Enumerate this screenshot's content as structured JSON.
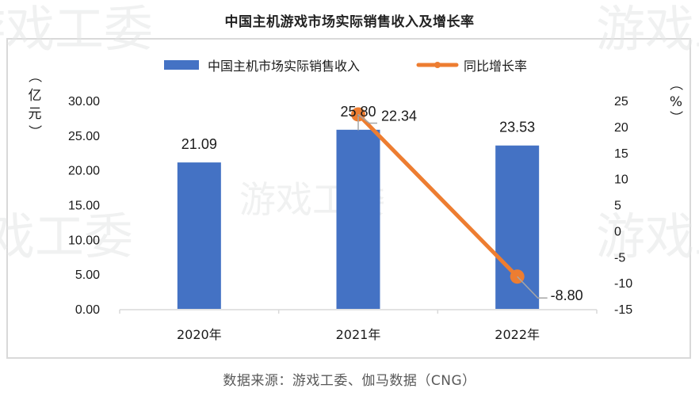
{
  "header": {
    "title": "中国主机游戏市场实际销售收入及增长率"
  },
  "footer": {
    "source": "数据来源：游戏工委、伽马数据（CNG）"
  },
  "watermark": {
    "text": "游戏工委"
  },
  "colors": {
    "bar": "#4472C4",
    "line": "#ED7D31",
    "axis": "#d9d9d9",
    "leader": "#a6a6a6",
    "watermark": "#e4e6e7"
  },
  "chart_data": {
    "type": "bar+line",
    "title": "中国主机游戏市场实际销售收入及增长率",
    "categories": [
      "2020年",
      "2021年",
      "2022年"
    ],
    "series": [
      {
        "name": "中国主机市场实际销售收入",
        "type": "bar",
        "axis": "left",
        "values": [
          21.09,
          25.8,
          23.53
        ],
        "labels": [
          "21.09",
          "25.80",
          "23.53"
        ]
      },
      {
        "name": "同比增长率",
        "type": "line",
        "axis": "right",
        "values": [
          null,
          22.34,
          -8.8
        ],
        "labels": [
          "",
          "22.34",
          "-8.80"
        ]
      }
    ],
    "left_axis": {
      "label": "（亿元）",
      "ylim": [
        0,
        30
      ],
      "ticks": [
        "0.00",
        "5.00",
        "10.00",
        "15.00",
        "20.00",
        "25.00",
        "30.00"
      ]
    },
    "right_axis": {
      "label": "（%）",
      "ylim": [
        -15,
        25
      ],
      "ticks": [
        "-15",
        "-10",
        "-5",
        "0",
        "5",
        "10",
        "15",
        "20",
        "25"
      ]
    },
    "grid": false,
    "legend_position": "top",
    "source": "数据来源：游戏工委、伽马数据（CNG）"
  }
}
